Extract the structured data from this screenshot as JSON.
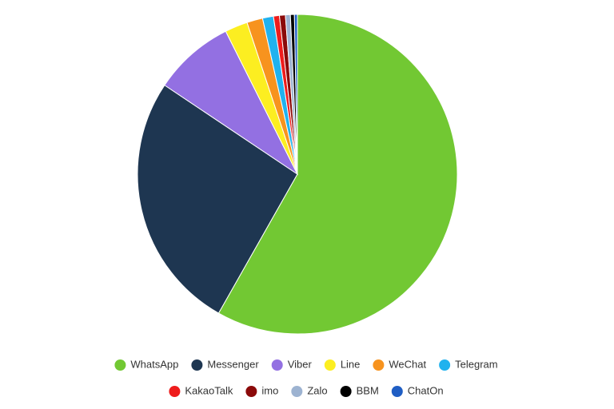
{
  "chart_data": {
    "type": "pie",
    "categories": [
      "WhatsApp",
      "Messenger",
      "Viber",
      "Line",
      "WeChat",
      "Telegram",
      "KakaoTalk",
      "imo",
      "Zalo",
      "BBM",
      "ChatOn"
    ],
    "values": [
      58.2,
      26.2,
      8.2,
      2.3,
      1.6,
      1.1,
      0.6,
      0.6,
      0.5,
      0.4,
      0.3
    ],
    "colors": [
      "#72c833",
      "#1e3651",
      "#9370e2",
      "#fcee21",
      "#f7931e",
      "#20b2ee",
      "#ee1c1c",
      "#8b0a0a",
      "#9db3d1",
      "#000000",
      "#1f5ec4"
    ],
    "legend": "bottom"
  }
}
